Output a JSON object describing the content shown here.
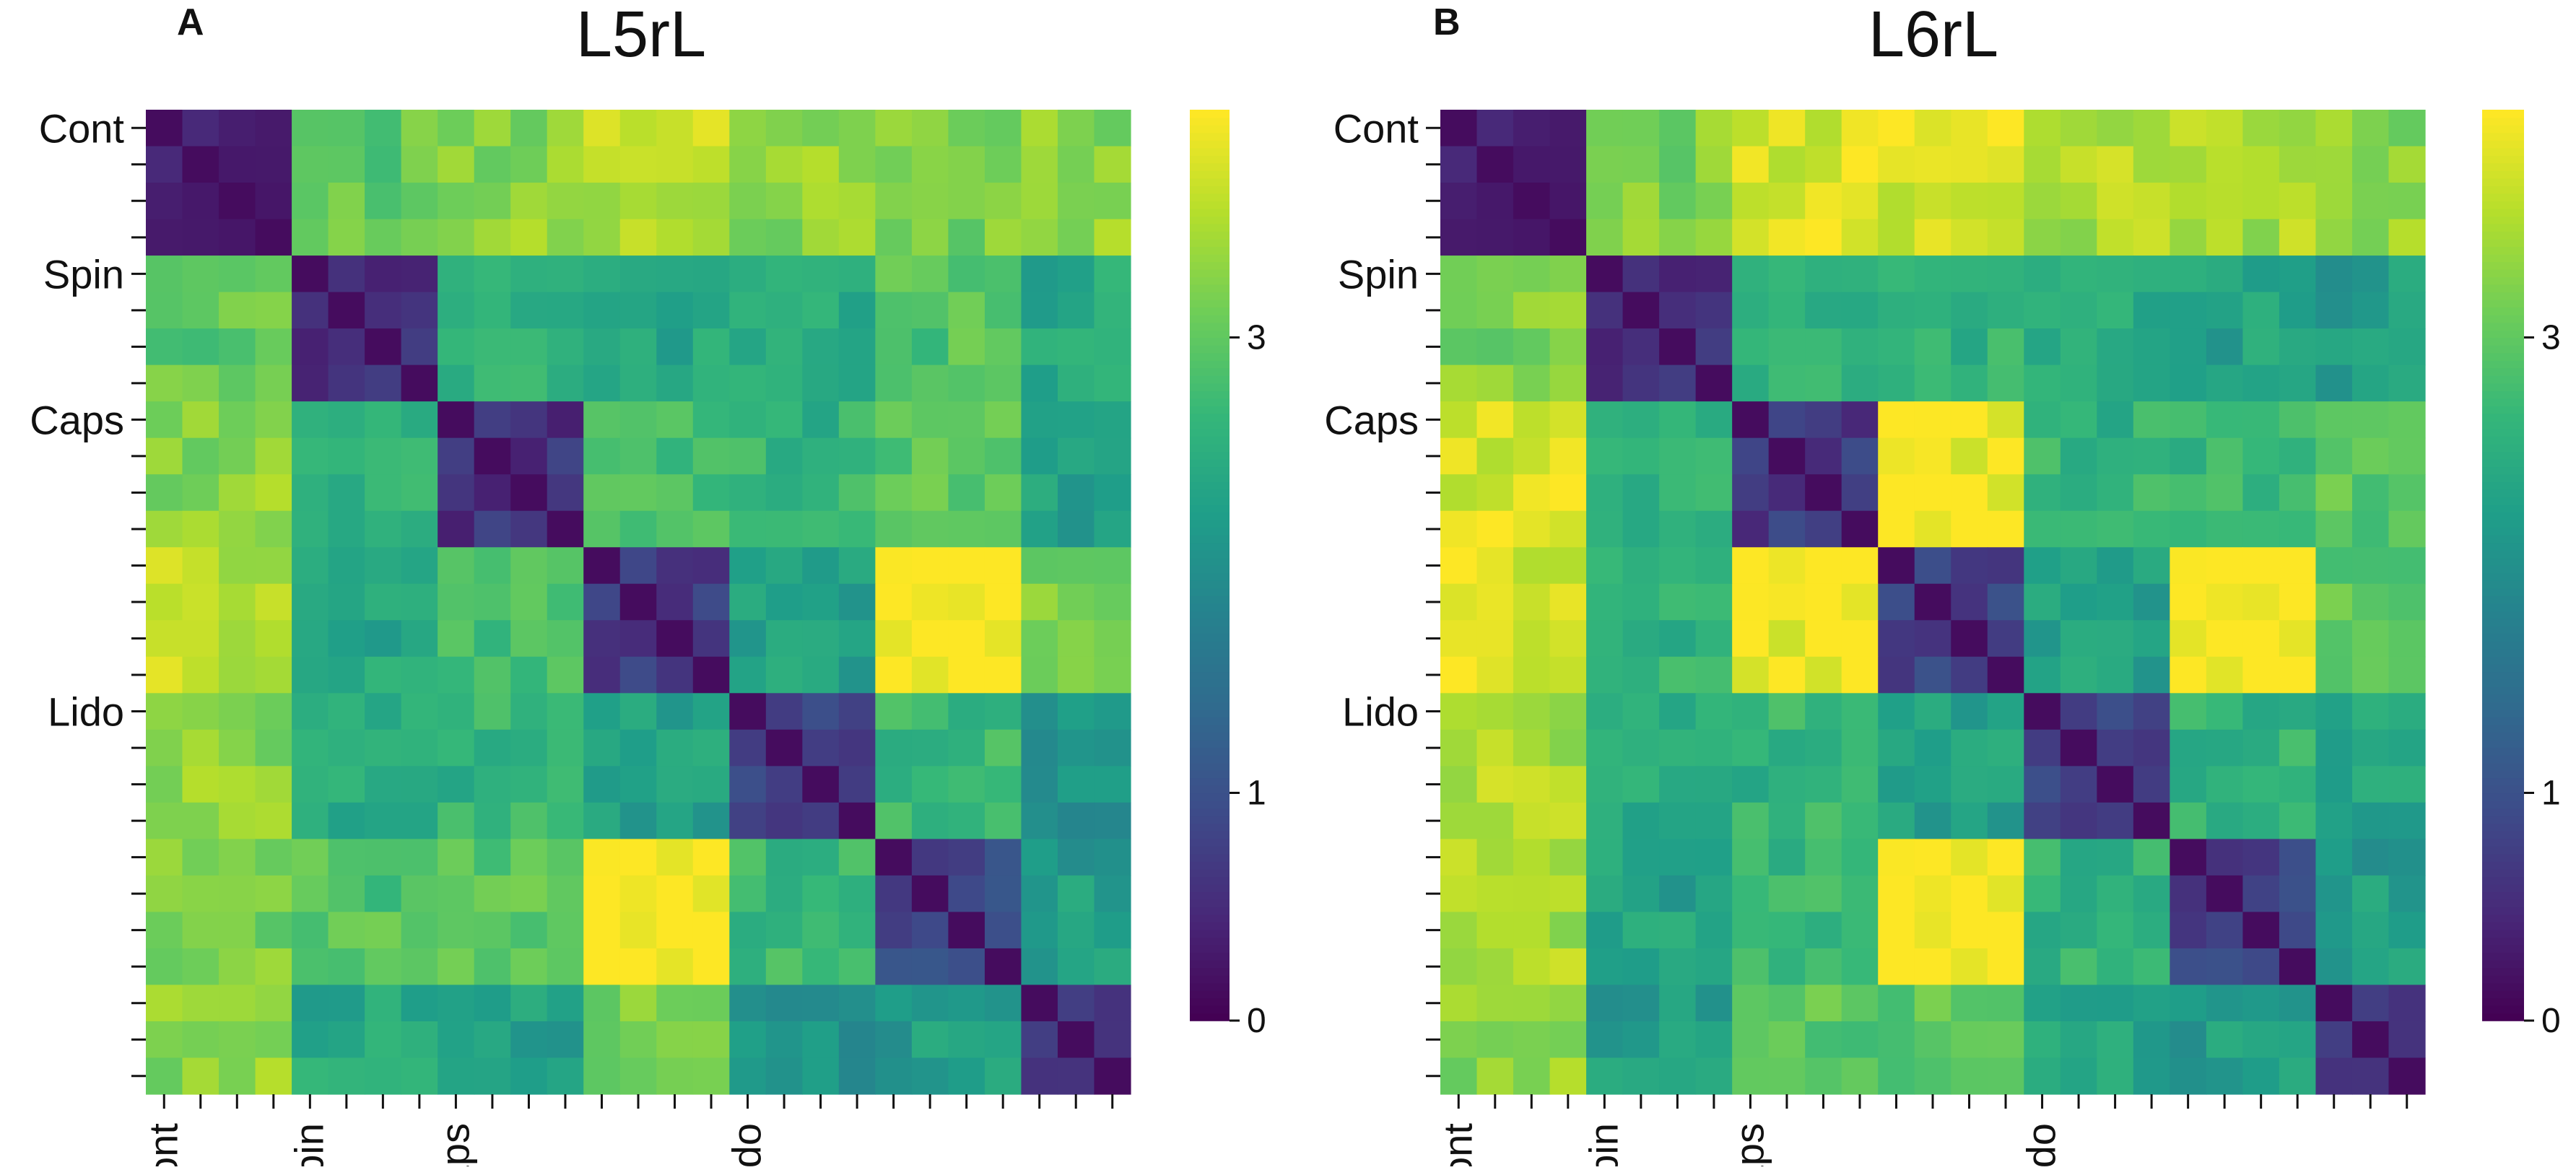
{
  "chart_data": [
    {
      "panel_label": "A",
      "type": "heatmap",
      "title": "L5rL",
      "n": 27,
      "row_labels": [
        {
          "index": 0,
          "label": "Cont"
        },
        {
          "index": 4,
          "label": "Spin"
        },
        {
          "index": 8,
          "label": "Caps"
        },
        {
          "index": 16,
          "label": "Lido"
        }
      ],
      "col_labels": [
        {
          "index": 0,
          "label": "Cont"
        },
        {
          "index": 4,
          "label": "Spin"
        },
        {
          "index": 8,
          "label": "Caps"
        },
        {
          "index": 16,
          "label": "Lido"
        }
      ],
      "colorbar": {
        "range": [
          0,
          4
        ],
        "ticks": [
          {
            "value": 0,
            "label": "0"
          },
          {
            "value": 1,
            "label": "1"
          },
          {
            "value": 3,
            "label": "3"
          }
        ]
      },
      "blocks": [
        4,
        4,
        4,
        4,
        4,
        4,
        3
      ],
      "block_matrix": [
        [
          0.5,
          3.0,
          3.3,
          3.6,
          3.3,
          3.2,
          3.3
        ],
        [
          3.0,
          0.6,
          2.5,
          2.4,
          2.4,
          2.9,
          2.4
        ],
        [
          3.3,
          2.5,
          0.6,
          2.8,
          2.6,
          3.0,
          2.3
        ],
        [
          3.6,
          2.4,
          2.8,
          0.7,
          2.3,
          4.1,
          3.2
        ],
        [
          3.3,
          2.4,
          2.6,
          2.3,
          0.7,
          2.7,
          2.0
        ],
        [
          3.2,
          2.9,
          3.0,
          4.1,
          2.7,
          0.9,
          2.2
        ],
        [
          3.3,
          2.4,
          2.3,
          3.2,
          2.0,
          2.2,
          0.8
        ]
      ]
    },
    {
      "panel_label": "B",
      "type": "heatmap",
      "title": "L6rL",
      "n": 27,
      "row_labels": [
        {
          "index": 0,
          "label": "Cont"
        },
        {
          "index": 4,
          "label": "Spin"
        },
        {
          "index": 8,
          "label": "Caps"
        },
        {
          "index": 16,
          "label": "Lido"
        }
      ],
      "col_labels": [
        {
          "index": 0,
          "label": "Cont"
        },
        {
          "index": 4,
          "label": "Spin"
        },
        {
          "index": 8,
          "label": "Caps"
        },
        {
          "index": 16,
          "label": "Lido"
        }
      ],
      "colorbar": {
        "range": [
          0,
          4
        ],
        "ticks": [
          {
            "value": 0,
            "label": "0"
          },
          {
            "value": 1,
            "label": "1"
          },
          {
            "value": 3,
            "label": "3"
          }
        ]
      },
      "blocks": [
        4,
        4,
        4,
        4,
        4,
        4,
        3
      ],
      "block_matrix": [
        [
          0.5,
          3.2,
          3.8,
          3.8,
          3.5,
          3.5,
          3.3
        ],
        [
          3.2,
          0.6,
          2.5,
          2.6,
          2.4,
          2.3,
          2.2
        ],
        [
          3.8,
          2.5,
          0.7,
          3.9,
          2.6,
          2.7,
          3.0
        ],
        [
          3.8,
          2.6,
          3.9,
          0.8,
          2.3,
          4.1,
          3.0
        ],
        [
          3.5,
          2.4,
          2.6,
          2.3,
          0.7,
          2.6,
          2.3
        ],
        [
          3.5,
          2.3,
          2.7,
          4.1,
          2.6,
          0.8,
          2.2
        ],
        [
          3.3,
          2.2,
          3.0,
          3.0,
          2.3,
          2.2,
          0.8
        ]
      ]
    }
  ]
}
